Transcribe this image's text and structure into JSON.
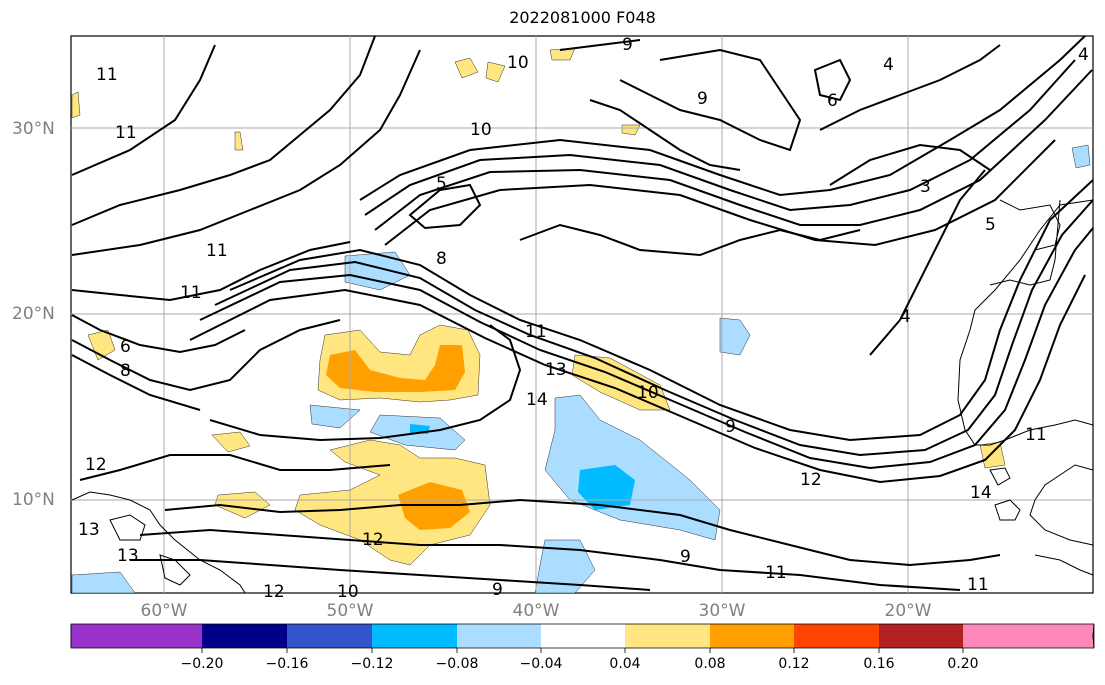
{
  "title": "2022081000 F048",
  "map": {
    "lat_labels": [
      "30°N",
      "20°N",
      "10°N"
    ],
    "lon_labels": [
      "60°W",
      "50°W",
      "40°W",
      "30°W",
      "20°W"
    ],
    "contour_labels": [
      "11",
      "11",
      "10",
      "9",
      "10",
      "9",
      "6",
      "4",
      "5",
      "8",
      "11",
      "13",
      "10",
      "9",
      "3",
      "5",
      "4",
      "4",
      "11",
      "6",
      "8",
      "12",
      "13",
      "13",
      "12",
      "10",
      "12",
      "9",
      "9",
      "11",
      "12",
      "11",
      "14",
      "14",
      "11"
    ]
  },
  "colorbar": {
    "ticks": [
      "−0.20",
      "−0.16",
      "−0.12",
      "−0.08",
      "−0.04",
      "0.04",
      "0.08",
      "0.12",
      "0.16",
      "0.20"
    ],
    "colors": [
      "#9933cc",
      "#000088",
      "#3355cc",
      "#00bbff",
      "#aaddff",
      "#ffffff",
      "#ffe680",
      "#ffa000",
      "#ff4500",
      "#b22222",
      "#ff88bb"
    ]
  }
}
